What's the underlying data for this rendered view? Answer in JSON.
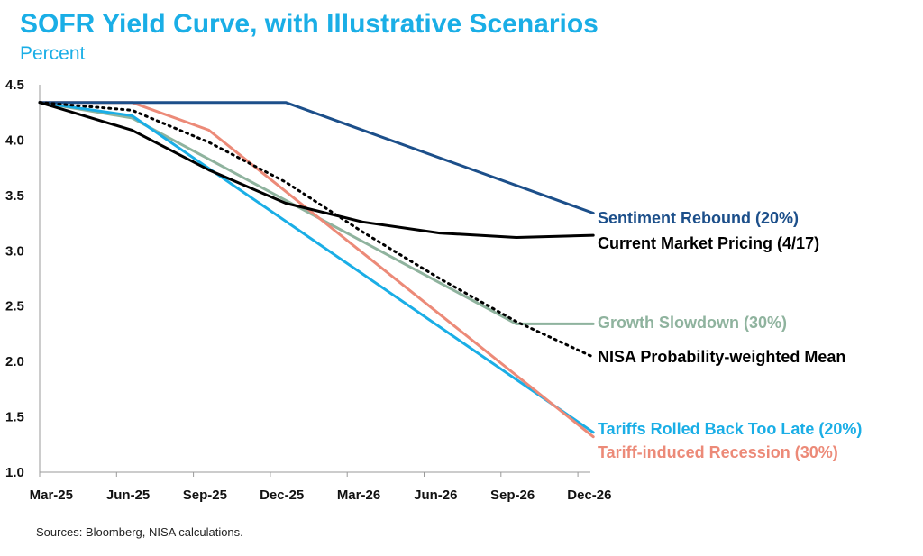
{
  "chart_data": {
    "type": "line",
    "title": "SOFR Yield Curve, with Illustrative Scenarios",
    "subtitle": "Percent",
    "x_categories": [
      "Mar-25",
      "Jun-25",
      "Sep-25",
      "Dec-25",
      "Mar-26",
      "Jun-26",
      "Sep-26",
      "Dec-26"
    ],
    "ylim": [
      1.0,
      4.5
    ],
    "y_ticks": [
      "1.0",
      "1.5",
      "2.0",
      "2.5",
      "3.0",
      "3.5",
      "4.0",
      "4.5"
    ],
    "x_range": [
      0,
      7.2
    ],
    "series": [
      {
        "name": "Sentiment Rebound (20%)",
        "color": "#1c4f8a",
        "style": "solid",
        "points": [
          [
            0,
            4.34
          ],
          [
            3.2,
            4.34
          ],
          [
            7.2,
            3.34
          ]
        ]
      },
      {
        "name": "Current Market Pricing (4/17)",
        "color": "#000000",
        "style": "solid",
        "points": [
          [
            0,
            4.34
          ],
          [
            1.2,
            4.09
          ],
          [
            2.2,
            3.73
          ],
          [
            3.2,
            3.43
          ],
          [
            4.2,
            3.26
          ],
          [
            5.2,
            3.16
          ],
          [
            6.2,
            3.12
          ],
          [
            7.2,
            3.14
          ]
        ]
      },
      {
        "name": "Growth Slowdown (30%)",
        "color": "#8fb39e",
        "style": "solid",
        "points": [
          [
            0,
            4.34
          ],
          [
            1.2,
            4.2
          ],
          [
            6.2,
            2.34
          ],
          [
            7.2,
            2.34
          ]
        ]
      },
      {
        "name": "NISA Probability-weighted Mean",
        "color": "#000000",
        "style": "dotted",
        "points": [
          [
            0,
            4.34
          ],
          [
            1.2,
            4.27
          ],
          [
            2.2,
            3.98
          ],
          [
            3.2,
            3.62
          ],
          [
            4.2,
            3.17
          ],
          [
            5.2,
            2.75
          ],
          [
            6.2,
            2.36
          ],
          [
            7.2,
            2.04
          ]
        ]
      },
      {
        "name": "Tariffs Rolled Back Too Late (20%)",
        "color": "#1aaee6",
        "style": "solid",
        "points": [
          [
            0,
            4.34
          ],
          [
            1.2,
            4.22
          ],
          [
            7.2,
            1.36
          ]
        ]
      },
      {
        "name": "Tariff-induced Recession (30%)",
        "color": "#ec8a78",
        "style": "solid",
        "points": [
          [
            0,
            4.34
          ],
          [
            1.2,
            4.34
          ],
          [
            2.2,
            4.09
          ],
          [
            7.2,
            1.32
          ]
        ]
      }
    ]
  },
  "labels": {
    "sentiment": "Sentiment Rebound (20%)",
    "current": "Current Market Pricing (4/17)",
    "growth": "Growth Slowdown (30%)",
    "mean": "NISA Probability-weighted Mean",
    "tariffs_back": "Tariffs Rolled Back Too Late (20%)",
    "recession": "Tariff-induced Recession (30%)"
  },
  "source": "Sources: Bloomberg, NISA calculations."
}
